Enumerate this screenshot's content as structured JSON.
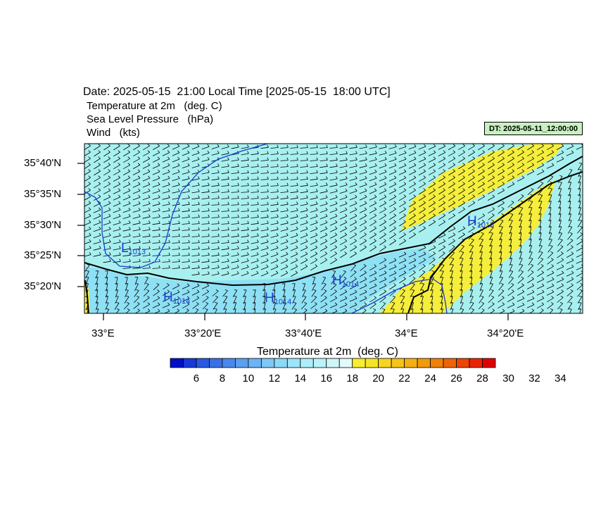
{
  "header": {
    "date_line": "Date: 2025-05-15  21:00 Local Time [2025-05-15  18:00 UTC]",
    "variables": [
      "Temperature at 2m   (deg. C)",
      "Sea Level Pressure   (hPa)",
      "Wind   (kts)"
    ],
    "dt_badge": "DT: 2025-05-11_12:00:00"
  },
  "map": {
    "lat_labels": [
      "35°40'N",
      "35°35'N",
      "35°30'N",
      "35°25'N",
      "35°20'N"
    ],
    "lon_labels": [
      "33°E",
      "33°20'E",
      "33°40'E",
      "34°E",
      "34°20'E"
    ],
    "pressure_centers": [
      {
        "type": "L",
        "value": "1013"
      },
      {
        "type": "H",
        "value": "1013"
      },
      {
        "type": "H",
        "value": "1014"
      },
      {
        "type": "H",
        "value": "1014"
      },
      {
        "type": "H",
        "value": "1014"
      }
    ],
    "colors": {
      "sea": "#a8f0f0",
      "cool_land": "#8ee0f4",
      "warm": "#f5ee3c",
      "contour": "#1a3cd0",
      "coast": "#000000",
      "badge": "#c8f0c0"
    }
  },
  "colorbar": {
    "title": "Temperature at 2m  (deg. C)",
    "tick_labels": [
      "6",
      "8",
      "10",
      "12",
      "14",
      "16",
      "18",
      "20",
      "22",
      "24",
      "26",
      "28",
      "30",
      "32",
      "34"
    ],
    "colors": [
      "#0010c8",
      "#1838d8",
      "#2a58e0",
      "#3a70e6",
      "#4a88ec",
      "#5aa0f0",
      "#6cb4f4",
      "#7cc8f6",
      "#8cd8f8",
      "#9ce4fa",
      "#aceefa",
      "#bcf2fa",
      "#cef6fa",
      "#e2fafa",
      "#f6ee30",
      "#f6e428",
      "#f6d420",
      "#f6c418",
      "#f4b010",
      "#f29a0a",
      "#f08008",
      "#ee6406",
      "#ec4404",
      "#ea2402",
      "#e00000"
    ]
  }
}
